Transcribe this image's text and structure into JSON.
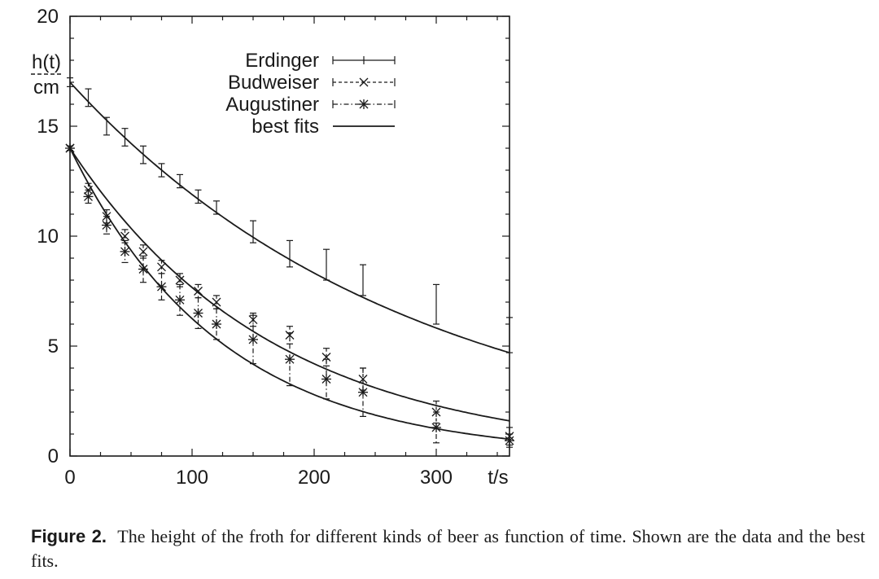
{
  "caption": {
    "label": "Figure 2.",
    "text": "The height of the froth for different kinds of beer as function of time. Shown are the data and the best fits."
  },
  "chart_data": {
    "type": "scatter",
    "title": "",
    "xlabel": "t/s",
    "ylabel_num": "h(t)",
    "ylabel_den": "cm",
    "xlim": [
      0,
      360
    ],
    "ylim": [
      0,
      20
    ],
    "xticks": [
      0,
      100,
      200,
      300
    ],
    "yticks": [
      0,
      5,
      10,
      15,
      20
    ],
    "grid": false,
    "legend_position": "top-center",
    "colors": {
      "ink": "#1a1a1a"
    },
    "series": [
      {
        "name": "Erdinger",
        "marker": "none",
        "line_style": "solid",
        "x": [
          0,
          15,
          30,
          45,
          60,
          75,
          90,
          105,
          120,
          150,
          180,
          210,
          240,
          300,
          360
        ],
        "y": [
          17.0,
          16.3,
          15.0,
          14.5,
          13.7,
          13.0,
          12.5,
          11.8,
          11.3,
          10.2,
          9.2,
          8.7,
          8.0,
          6.9,
          5.5
        ],
        "err": [
          0.2,
          0.4,
          0.4,
          0.4,
          0.4,
          0.3,
          0.3,
          0.3,
          0.3,
          0.5,
          0.6,
          0.7,
          0.7,
          0.9,
          0.8
        ]
      },
      {
        "name": "Budweiser",
        "marker": "x",
        "line_style": "dashed",
        "x": [
          0,
          15,
          30,
          45,
          60,
          75,
          90,
          105,
          120,
          150,
          180,
          210,
          240,
          300,
          360
        ],
        "y": [
          14.0,
          12.1,
          10.9,
          10.0,
          9.3,
          8.6,
          8.0,
          7.5,
          7.0,
          6.2,
          5.5,
          4.5,
          3.5,
          2.0,
          0.9
        ],
        "err": [
          0.1,
          0.3,
          0.3,
          0.3,
          0.3,
          0.3,
          0.3,
          0.3,
          0.3,
          0.3,
          0.4,
          0.4,
          0.5,
          0.5,
          0.4
        ]
      },
      {
        "name": "Augustiner",
        "marker": "star",
        "line_style": "dashdot",
        "x": [
          0,
          15,
          30,
          45,
          60,
          75,
          90,
          105,
          120,
          150,
          180,
          210,
          240,
          300,
          360
        ],
        "y": [
          14.0,
          11.8,
          10.5,
          9.3,
          8.5,
          7.7,
          7.1,
          6.5,
          6.0,
          5.3,
          4.4,
          3.5,
          2.9,
          1.3,
          0.7
        ],
        "err": [
          0.1,
          0.3,
          0.4,
          0.5,
          0.6,
          0.6,
          0.7,
          0.7,
          0.7,
          1.1,
          1.2,
          0.9,
          1.1,
          0.7,
          0.3
        ]
      }
    ],
    "fits": {
      "name": "best fits",
      "line_style": "solid",
      "curves": [
        {
          "h0": 17.0,
          "tau": 280
        },
        {
          "h0": 14.0,
          "tau": 166
        },
        {
          "h0": 14.0,
          "tau": 124
        }
      ]
    }
  }
}
